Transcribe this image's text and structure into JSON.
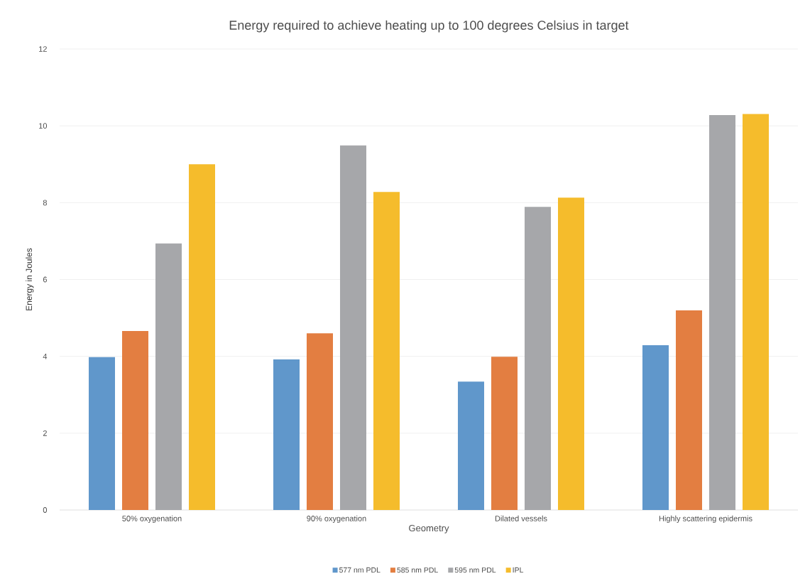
{
  "chart_data": {
    "type": "bar",
    "title": "Energy required to achieve heating up to 100 degrees Celsius in target",
    "xlabel": "Geometry",
    "ylabel": "Energy in Joules",
    "categories": [
      "50% oxygenation",
      "90% oxygenation",
      "Dilated vessels",
      "Highly scattering epidermis"
    ],
    "series": [
      {
        "name": "577 nm PDL",
        "color": "#6097cb",
        "values": [
          3.98,
          3.92,
          3.34,
          4.29
        ]
      },
      {
        "name": "585 nm PDL",
        "color": "#e37e41",
        "values": [
          4.66,
          4.6,
          3.99,
          5.2
        ]
      },
      {
        "name": "595 nm PDL",
        "color": "#a6a7aa",
        "values": [
          6.94,
          9.49,
          7.89,
          10.28
        ]
      },
      {
        "name": "IPL",
        "color": "#f5bc2c",
        "values": [
          9.0,
          8.28,
          8.13,
          10.31
        ]
      }
    ],
    "ylim": [
      0,
      12
    ],
    "yticks": [
      0,
      2,
      4,
      6,
      8,
      10,
      12
    ],
    "grid": "y",
    "legend": "bottom"
  }
}
